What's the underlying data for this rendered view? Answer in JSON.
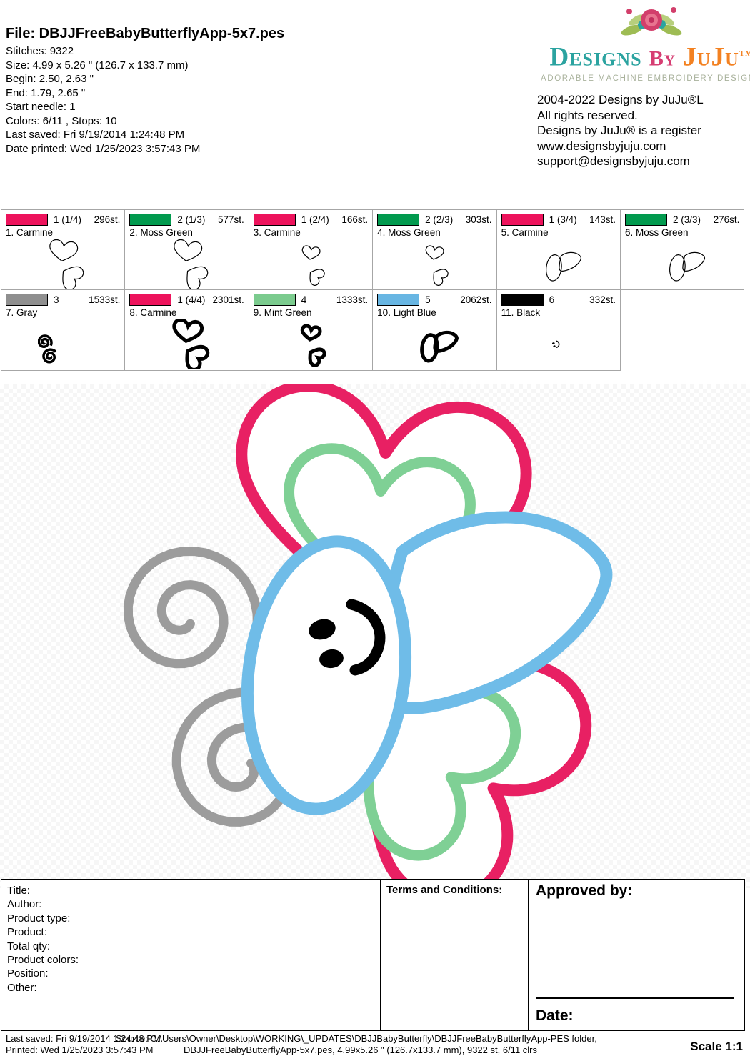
{
  "header": {
    "file": "File: DBJJFreeBabyButterflyApp-5x7.pes",
    "lines": [
      "Stitches: 9322",
      "Size: 4.99 x 5.26 \" (126.7 x 133.7 mm)",
      "Begin: 2.50, 2.63 \"",
      "End: 1.79, 2.65 \"",
      "Start needle: 1",
      "Colors: 6/11 , Stops: 10",
      "Last saved: Fri 9/19/2014 1:24:48 PM",
      "Date printed: Wed 1/25/2023 3:57:43 PM"
    ]
  },
  "brand": {
    "logo_designs": "Designs",
    "logo_by": "By",
    "logo_juju": "JuJu",
    "logo_tm": "TM",
    "tagline": "ADORABLE MACHINE EMBROIDERY DESIGNS",
    "info": [
      "2004-2022 Designs by JuJu®L",
      "All rights reserved.",
      "Designs by JuJu® is a register",
      "www.designsbyjuju.com",
      "support@designsbyjuju.com"
    ]
  },
  "thread_table": {
    "cells": [
      {
        "color": "#ed135c",
        "seq": "1 (1/4)",
        "stitches": "296st.",
        "name": "1. Carmine"
      },
      {
        "color": "#019a4e",
        "seq": "2 (1/3)",
        "stitches": "577st.",
        "name": "2. Moss Green"
      },
      {
        "color": "#ed135c",
        "seq": "1 (2/4)",
        "stitches": "166st.",
        "name": "3. Carmine"
      },
      {
        "color": "#019a4e",
        "seq": "2 (2/3)",
        "stitches": "303st.",
        "name": "4. Moss Green"
      },
      {
        "color": "#ed135c",
        "seq": "1 (3/4)",
        "stitches": "143st.",
        "name": "5. Carmine"
      },
      {
        "color": "#019a4e",
        "seq": "2 (3/3)",
        "stitches": "276st.",
        "name": "6. Moss Green"
      },
      {
        "color": "#8f8f8f",
        "seq": "3",
        "stitches": "1533st.",
        "name": "7. Gray"
      },
      {
        "color": "#ed135c",
        "seq": "1 (4/4)",
        "stitches": "2301st.",
        "name": "8. Carmine"
      },
      {
        "color": "#7bcb8e",
        "seq": "4",
        "stitches": "1333st.",
        "name": "9. Mint Green"
      },
      {
        "color": "#68b6e3",
        "seq": "5",
        "stitches": "2062st.",
        "name": "10. Light Blue"
      },
      {
        "color": "#000000",
        "seq": "6",
        "stitches": "332st.",
        "name": "11. Black"
      }
    ]
  },
  "design": {
    "colors": {
      "carmine": "#e82063",
      "mint": "#7fd095",
      "blue": "#6fbce8",
      "gray": "#9c9c9c",
      "black": "#000000"
    }
  },
  "form": {
    "fields": [
      "Title:",
      "Author:",
      "Product type:",
      "Product:",
      "Total qty:",
      "Product colors:",
      "Position:",
      "Other:"
    ],
    "terms": "Terms and Conditions:",
    "approved": "Approved by:",
    "date": "Date:"
  },
  "footer": {
    "last_saved": "Last saved: Fri 9/19/2014 1:24:48 PM",
    "printed": "Printed: Wed 1/25/2023 3:57:43 PM",
    "source1": "Source: C:\\Users\\Owner\\Desktop\\WORKING\\_UPDATES\\DBJJBabyButterfly\\DBJJFreeBabyButterflyApp-PES folder,",
    "source2": "DBJJFreeBabyButterflyApp-5x7.pes, 4.99x5.26 \" (126.7x133.7 mm), 9322 st, 6/11 clrs",
    "scale": "Scale 1:1"
  }
}
